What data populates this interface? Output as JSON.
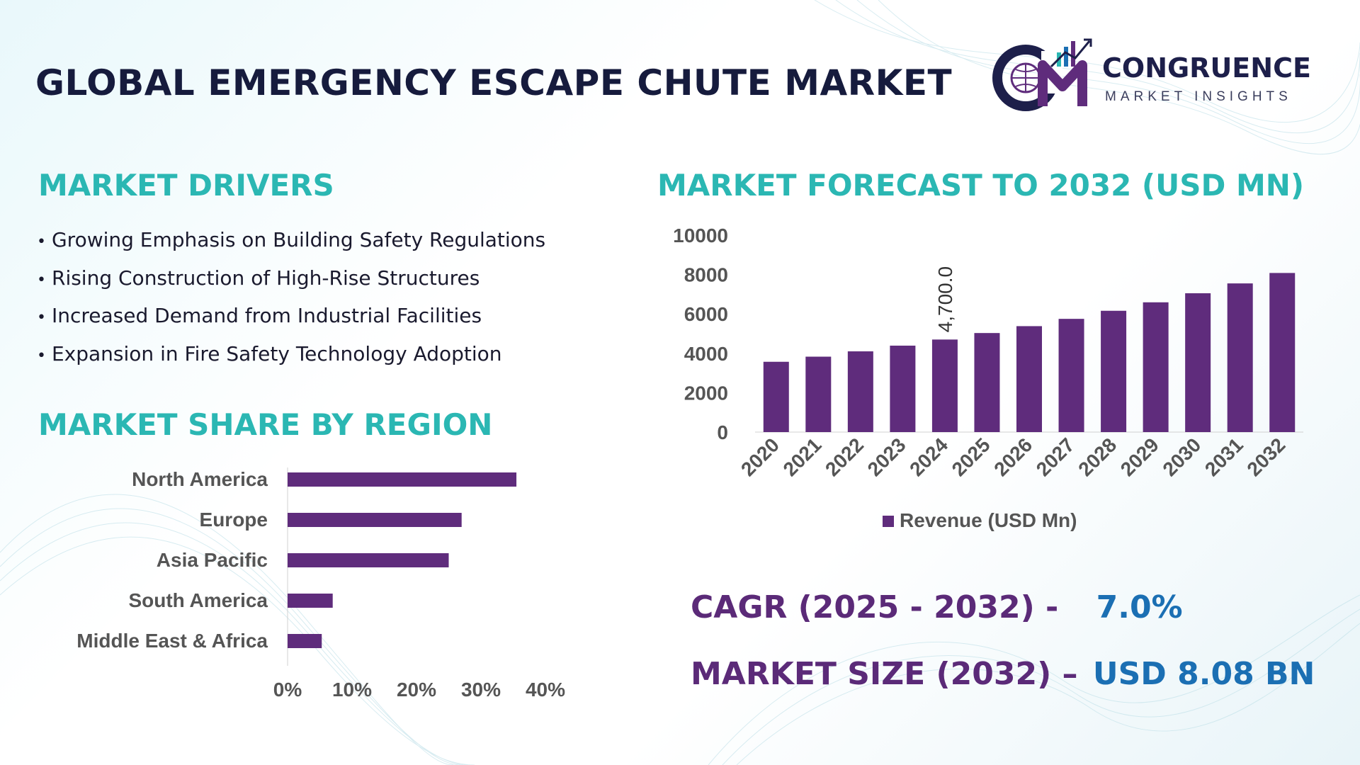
{
  "header": {
    "title": "GLOBAL EMERGENCY ESCAPE CHUTE MARKET",
    "logo_name": "CONGRUENCE",
    "logo_sub": "MARKET INSIGHTS"
  },
  "drivers": {
    "heading": "MARKET DRIVERS",
    "items": [
      "Growing Emphasis on Building Safety Regulations",
      "Rising Construction of High-Rise Structures",
      "Increased Demand from Industrial Facilities",
      "Expansion in Fire Safety Technology Adoption"
    ]
  },
  "region": {
    "heading": "MARKET SHARE BY REGION"
  },
  "forecast": {
    "heading": "MARKET FORECAST TO 2032 (USD MN)"
  },
  "kpis": {
    "cagr_label": "CAGR (2025 - 2032) -",
    "cagr_value": "7.0%",
    "size_label": "MARKET SIZE (2032) –",
    "size_value": "USD 8.08 BN"
  },
  "colors": {
    "bar": "#5f2c7c",
    "accent": "#2bb7b3",
    "kpi_label": "#5b2a78",
    "kpi_value": "#1b6fb3",
    "title": "#161b3d"
  },
  "chart_data": [
    {
      "type": "bar",
      "orientation": "horizontal",
      "categories": [
        "North America",
        "Europe",
        "Asia Pacific",
        "South America",
        "Middle East & Africa"
      ],
      "values": [
        35.5,
        27,
        25,
        7,
        5.3
      ],
      "xticks": [
        "0%",
        "10%",
        "20%",
        "30%",
        "40%"
      ],
      "xlim": [
        0,
        40
      ],
      "grid": false
    },
    {
      "type": "bar",
      "categories": [
        "2020",
        "2021",
        "2022",
        "2023",
        "2024",
        "2025",
        "2026",
        "2027",
        "2028",
        "2029",
        "2030",
        "2031",
        "2032"
      ],
      "series": [
        {
          "name": "Revenue (USD Mn)",
          "values": [
            3570,
            3830,
            4100,
            4390,
            4700,
            5030,
            5380,
            5750,
            6160,
            6590,
            7050,
            7550,
            8080
          ]
        }
      ],
      "ylim": [
        0,
        10000
      ],
      "yticks": [
        "0",
        "2000",
        "4000",
        "6000",
        "8000",
        "10000"
      ],
      "data_labels": [
        {
          "index": 4,
          "text": "4,700.0"
        }
      ],
      "legend": "bottom",
      "grid": false
    }
  ]
}
